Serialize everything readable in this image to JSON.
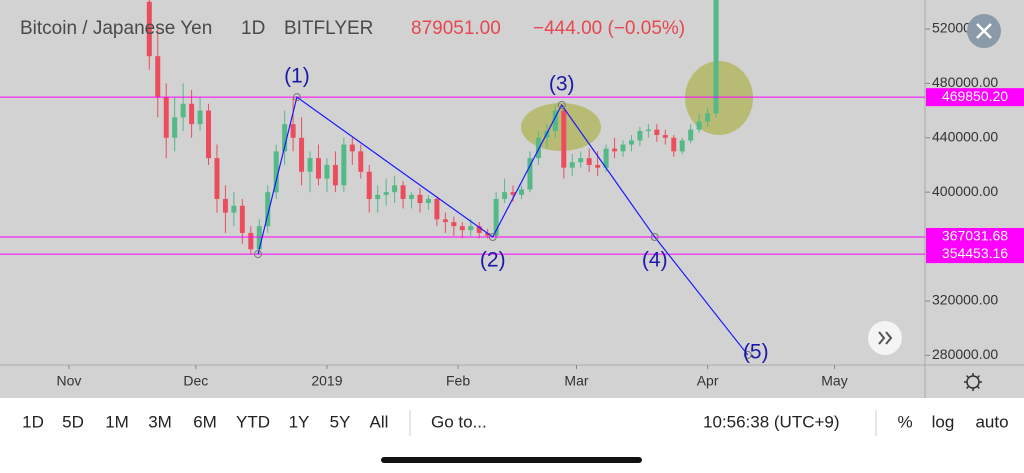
{
  "chart_data": {
    "type": "candlestick",
    "symbol": "Bitcoin / Japanese Yen",
    "interval": "1D",
    "exchange": "BITFLYER",
    "price": "879051.00",
    "change": "−444.00 (−0.05%)",
    "up_color": "#53b987",
    "down_color": "#eb4d5c",
    "xlim": [
      -16.3,
      202.4
    ],
    "ylim": [
      272900,
      541300
    ],
    "xticks": [
      {
        "value": 0,
        "label": "Nov"
      },
      {
        "value": 30,
        "label": "Dec"
      },
      {
        "value": 61,
        "label": "2019"
      },
      {
        "value": 92,
        "label": "Feb"
      },
      {
        "value": 120,
        "label": "Mar"
      },
      {
        "value": 151,
        "label": "Apr"
      },
      {
        "value": 181,
        "label": "May"
      }
    ],
    "yticks": [
      {
        "value": 520000,
        "label": "520000.00"
      },
      {
        "value": 480000,
        "label": "480000.00"
      },
      {
        "value": 440000,
        "label": "440000.00"
      },
      {
        "value": 400000,
        "label": "400000.00"
      },
      {
        "value": 320000,
        "label": "320000.00"
      },
      {
        "value": 280000,
        "label": "280000.00"
      }
    ],
    "candles": {
      "x": [
        19,
        21,
        23,
        25,
        27,
        29,
        31,
        33,
        35,
        37,
        39,
        41,
        43,
        45,
        47,
        49,
        51,
        53,
        55,
        57,
        59,
        61,
        63,
        65,
        67,
        69,
        71,
        73,
        75,
        77,
        79,
        81,
        83,
        85,
        87,
        89,
        91,
        93,
        95,
        97,
        99,
        101,
        103,
        105,
        107,
        109,
        111,
        113,
        115,
        117,
        119,
        121,
        123,
        125,
        127,
        129,
        131,
        133,
        135,
        137,
        139,
        141,
        143,
        145,
        147,
        149,
        151,
        153
      ],
      "open": [
        540000,
        500000,
        470000,
        440000,
        455000,
        465000,
        450000,
        460000,
        425000,
        395000,
        385000,
        390000,
        370000,
        358000,
        375000,
        400000,
        430000,
        450000,
        440000,
        415000,
        425000,
        410000,
        420000,
        405000,
        435000,
        430000,
        415000,
        395000,
        398000,
        400000,
        405000,
        395000,
        398000,
        392000,
        395000,
        380000,
        378000,
        375000,
        372000,
        375000,
        370000,
        368000,
        395000,
        400000,
        398000,
        402000,
        425000,
        440000,
        445000,
        460000,
        418000,
        422000,
        425000,
        420000,
        418000,
        432000,
        430000,
        435000,
        438000,
        445000,
        446000,
        442000,
        440000,
        430000,
        438000,
        446000,
        452000,
        458000
      ],
      "high": [
        560000,
        520000,
        480000,
        470000,
        480000,
        475000,
        470000,
        465000,
        435000,
        405000,
        400000,
        395000,
        375000,
        380000,
        405000,
        435000,
        460000,
        470000,
        455000,
        430000,
        435000,
        425000,
        430000,
        440000,
        440000,
        435000,
        420000,
        405000,
        410000,
        412000,
        408000,
        400000,
        403000,
        398000,
        397000,
        385000,
        382000,
        378000,
        380000,
        378000,
        373000,
        400000,
        410000,
        405000,
        405000,
        430000,
        445000,
        450000,
        464000,
        462000,
        428000,
        430000,
        432000,
        430000,
        435000,
        440000,
        438000,
        442000,
        448000,
        450000,
        450000,
        446000,
        442000,
        440000,
        450000,
        458000,
        462000,
        560000
      ],
      "low": [
        490000,
        455000,
        425000,
        430000,
        445000,
        440000,
        445000,
        420000,
        385000,
        370000,
        375000,
        362000,
        354000,
        354000,
        370000,
        395000,
        420000,
        430000,
        405000,
        400000,
        405000,
        400000,
        400000,
        400000,
        420000,
        410000,
        385000,
        385000,
        390000,
        392000,
        388000,
        388000,
        385000,
        387000,
        375000,
        370000,
        368000,
        366000,
        368000,
        366000,
        366000,
        366000,
        392000,
        393000,
        395000,
        400000,
        420000,
        432000,
        440000,
        410000,
        412000,
        418000,
        415000,
        412000,
        415000,
        425000,
        426000,
        430000,
        434000,
        440000,
        437000,
        435000,
        426000,
        428000,
        436000,
        444000,
        448000,
        455000
      ],
      "close": [
        500000,
        470000,
        440000,
        455000,
        465000,
        450000,
        460000,
        425000,
        395000,
        385000,
        390000,
        370000,
        358000,
        375000,
        400000,
        430000,
        450000,
        440000,
        415000,
        425000,
        410000,
        420000,
        405000,
        435000,
        430000,
        415000,
        395000,
        398000,
        400000,
        405000,
        395000,
        398000,
        392000,
        395000,
        380000,
        378000,
        375000,
        372000,
        375000,
        370000,
        368000,
        395000,
        400000,
        398000,
        402000,
        425000,
        440000,
        445000,
        460000,
        418000,
        422000,
        425000,
        420000,
        418000,
        432000,
        430000,
        435000,
        438000,
        445000,
        446000,
        442000,
        440000,
        430000,
        438000,
        446000,
        452000,
        458000,
        545000
      ]
    },
    "levels": [
      {
        "value": 469850.2,
        "label": "469850.20"
      },
      {
        "value": 367031.68,
        "label": "367031.68"
      },
      {
        "value": 354453.16,
        "label": "354453.16"
      }
    ],
    "level_color": "#ff00ff",
    "wave": {
      "labels": [
        "(1)",
        "(2)",
        "(3)",
        "(4)",
        "(5)"
      ],
      "x": [
        44.7,
        53.9,
        100.2,
        116.5,
        138.5,
        160.5
      ],
      "y": [
        354453.16,
        469850.2,
        367031.68,
        464100,
        367031.68,
        280300
      ],
      "color": "#1a1aff"
    },
    "toolbar": {
      "ranges": [
        "1D",
        "5D",
        "1M",
        "3M",
        "6M",
        "YTD",
        "1Y",
        "5Y",
        "All"
      ],
      "goto": "Go to...",
      "clock": "10:56:38 (UTC+9)",
      "options": [
        "%",
        "log",
        "auto"
      ]
    }
  }
}
